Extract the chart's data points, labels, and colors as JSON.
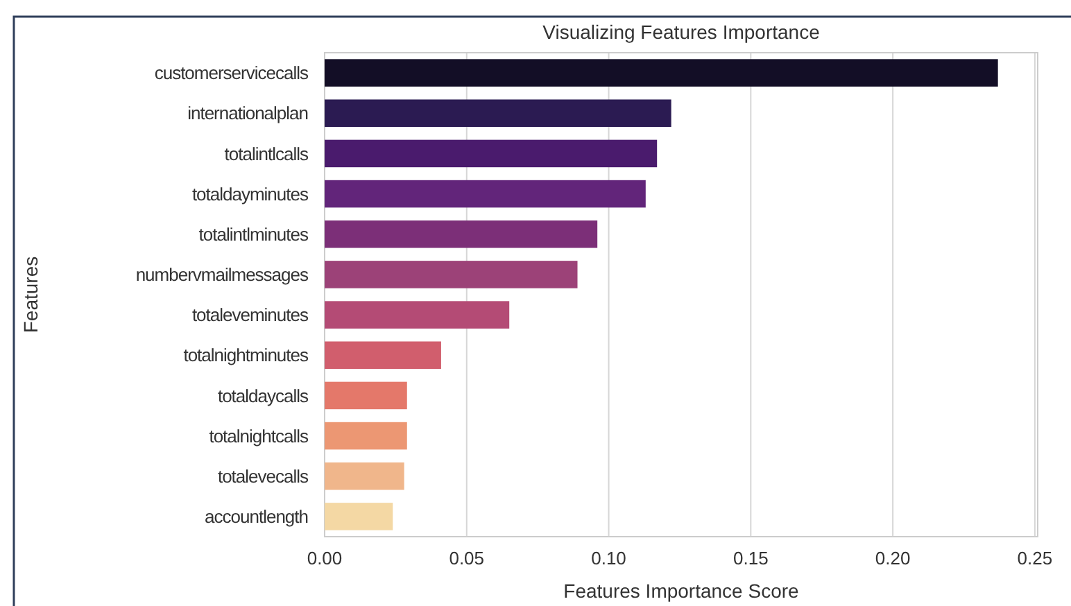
{
  "chart_data": {
    "type": "bar",
    "orientation": "horizontal",
    "title": "Visualizing Features Importance",
    "xlabel": "Features Importance Score",
    "ylabel": "Features",
    "categories": [
      "customerservicecalls",
      "internationalplan",
      "totalintlcalls",
      "totaldayminutes",
      "totalintlminutes",
      "numbervmailmessages",
      "totaleveminutes",
      "totalnightminutes",
      "totaldaycalls",
      "totalnightcalls",
      "totalevecalls",
      "accountlength"
    ],
    "values": [
      0.237,
      0.122,
      0.117,
      0.113,
      0.096,
      0.089,
      0.065,
      0.041,
      0.029,
      0.029,
      0.028,
      0.024
    ],
    "colors": [
      "#130e26",
      "#2b1b52",
      "#4a1b6d",
      "#62257a",
      "#7c2f78",
      "#9c4278",
      "#b44b75",
      "#d15e6d",
      "#e4786a",
      "#ec9773",
      "#f0b68b",
      "#f4d8a4"
    ],
    "xlim": [
      0,
      0.251
    ],
    "xticks": [
      {
        "value": 0,
        "label": "0.00"
      },
      {
        "value": 0.05,
        "label": "0.05"
      },
      {
        "value": 0.1,
        "label": "0.10"
      },
      {
        "value": 0.15,
        "label": "0.15"
      },
      {
        "value": 0.2,
        "label": "0.20"
      },
      {
        "value": 0.25,
        "label": "0.25"
      }
    ],
    "grid": "x"
  }
}
